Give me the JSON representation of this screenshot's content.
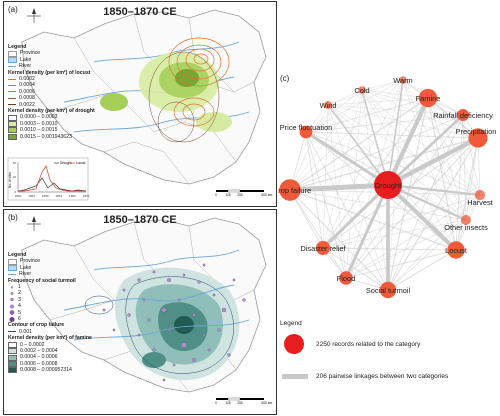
{
  "panel_a": {
    "label": "(a)",
    "title": "1850–1870 CE",
    "legend": {
      "title": "Legend",
      "province": "Province",
      "lake": "Lake",
      "river": "River",
      "locust_title": "Kernel density (per km²) of locust",
      "locust_levels": [
        "0.0002",
        "0.0004",
        "0.0006",
        "0.0008",
        "0.0022"
      ],
      "drought_title": "Kernel density (per km²) of drought",
      "drought_levels": [
        "0.0000 – 0.0003",
        "0.0003 – 0.0010",
        "0.0010 – 0.0015",
        "0.0015 – 0.001943623"
      ],
      "drought_colors": [
        "#ffffff",
        "#d6eba0",
        "#a6cf5a",
        "#7aa532"
      ]
    },
    "inset_chart": {
      "ylabel": "No. of sites",
      "legend": [
        "Drought",
        "Locust"
      ],
      "x_ticks": [
        "1850",
        "1854",
        "1858",
        "1862",
        "1866",
        "1870"
      ],
      "y_ticks": [
        "0",
        "20",
        "40"
      ],
      "colors": [
        "#3a3a3a",
        "#d04020"
      ]
    },
    "scale": [
      "0",
      "125",
      "250",
      "500"
    ],
    "scale_unit": "km"
  },
  "panel_b": {
    "label": "(b)",
    "title": "1850–1870 CE",
    "legend": {
      "title": "Legend",
      "province": "Province",
      "lake": "Lake",
      "river": "River",
      "turmoil_title": "Frequency of social turmoil",
      "turmoil_levels": [
        "1",
        "2",
        "3",
        "4",
        "5",
        "6"
      ],
      "crop_title": "Contour of crop failure",
      "crop_level": "0.001",
      "famine_title": "Kernel density (per km²) of famine",
      "famine_levels": [
        "0 – 0.0002",
        "0.0002 – 0.0004",
        "0.0004 – 0.0006",
        "0.0006 – 0.0008",
        "0.0008 – 0.000957314"
      ],
      "famine_colors": [
        "#ffffff",
        "#cfe3e0",
        "#8fbfb8",
        "#4f8f86",
        "#205a52"
      ]
    },
    "scale": [
      "0",
      "125",
      "250",
      "500"
    ],
    "scale_unit": "km"
  },
  "panel_c": {
    "label": "(c)",
    "nodes": [
      {
        "name": "Drought",
        "size": 2250
      },
      {
        "name": "Crop failure",
        "size": 1200
      },
      {
        "name": "Precipitation",
        "size": 900
      },
      {
        "name": "Famine",
        "size": 800
      },
      {
        "name": "Locust",
        "size": 700
      },
      {
        "name": "Social turmoil",
        "size": 600
      },
      {
        "name": "Disaster relief",
        "size": 400
      },
      {
        "name": "Flood",
        "size": 350
      },
      {
        "name": "Price fluctuation",
        "size": 300
      },
      {
        "name": "Rainfall deficiency",
        "size": 250
      },
      {
        "name": "Harvest",
        "size": 150
      },
      {
        "name": "Other insects",
        "size": 140
      },
      {
        "name": "Wind",
        "size": 60
      },
      {
        "name": "Cold",
        "size": 50
      },
      {
        "name": "Warm",
        "size": 50
      }
    ],
    "legend_title": "Legend",
    "legend_node": "2250 records related to the category",
    "legend_edge": "206 pairwise linkages between two categories",
    "node_color": "#f05a3a",
    "edge_color": "#c8c8c8"
  }
}
